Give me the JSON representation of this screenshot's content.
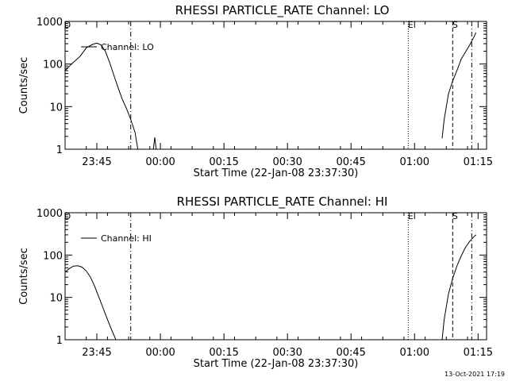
{
  "chart_data": [
    {
      "type": "line",
      "title": "RHESSI PARTICLE_RATE Channel: LO",
      "xlabel": "Start Time (22-Jan-08 23:37:30)",
      "ylabel": "Counts/sec",
      "y_scale": "log",
      "ylim": [
        1,
        1000
      ],
      "xlim": [
        "23:37:30",
        "01:17:00"
      ],
      "grid": false,
      "legend": {
        "placement": "top-left",
        "entries": [
          "Channel: LO"
        ]
      },
      "x_ticks": [
        "23:45",
        "00:00",
        "00:15",
        "00:30",
        "00:45",
        "01:00",
        "01:15"
      ],
      "y_ticks": [
        "1",
        "10",
        "100",
        "1000"
      ],
      "markers": [
        {
          "label": "D",
          "time": "23:37:30",
          "style": "solid"
        },
        {
          "label": "",
          "time": "23:53:00",
          "style": "dash-dot"
        },
        {
          "label": "E",
          "time": "00:58:30",
          "style": "dotted"
        },
        {
          "label": "S",
          "time": "01:09:00",
          "style": "dashed"
        },
        {
          "label": "",
          "time": "01:13:30",
          "style": "dash-dot"
        }
      ],
      "series": [
        {
          "name": "Channel: LO",
          "segments": [
            [
              [
                "23:37:30",
                70
              ],
              [
                "23:39:00",
                100
              ],
              [
                "23:41:00",
                150
              ],
              [
                "23:42:30",
                240
              ],
              [
                "23:44:00",
                290
              ],
              [
                "23:45:00",
                310
              ],
              [
                "23:46:00",
                280
              ],
              [
                "23:47:00",
                200
              ],
              [
                "23:48:00",
                110
              ],
              [
                "23:49:00",
                55
              ],
              [
                "23:50:00",
                28
              ],
              [
                "23:51:00",
                15
              ],
              [
                "23:52:00",
                9
              ],
              [
                "23:53:00",
                5
              ],
              [
                "23:54:00",
                2.5
              ],
              [
                "23:54:40",
                1
              ]
            ],
            [
              [
                "23:58:20",
                1
              ],
              [
                "23:58:40",
                1.9
              ],
              [
                "23:59:00",
                1
              ]
            ],
            [
              [
                "01:06:30",
                1.8
              ],
              [
                "01:07:00",
                5
              ],
              [
                "01:08:00",
                20
              ],
              [
                "01:09:00",
                40
              ],
              [
                "01:10:00",
                70
              ],
              [
                "01:11:00",
                130
              ],
              [
                "01:12:00",
                190
              ],
              [
                "01:13:00",
                280
              ],
              [
                "01:14:00",
                430
              ],
              [
                "01:14:30",
                550
              ]
            ]
          ]
        }
      ]
    },
    {
      "type": "line",
      "title": "RHESSI PARTICLE_RATE Channel: HI",
      "xlabel": "Start Time (22-Jan-08 23:37:30)",
      "ylabel": "Counts/sec",
      "y_scale": "log",
      "ylim": [
        1,
        1000
      ],
      "xlim": [
        "23:37:30",
        "01:17:00"
      ],
      "grid": false,
      "legend": {
        "placement": "top-left",
        "entries": [
          "Channel: HI"
        ]
      },
      "x_ticks": [
        "23:45",
        "00:00",
        "00:15",
        "00:30",
        "00:45",
        "01:00",
        "01:15"
      ],
      "y_ticks": [
        "1",
        "10",
        "100",
        "1000"
      ],
      "markers": [
        {
          "label": "D",
          "time": "23:37:30",
          "style": "solid"
        },
        {
          "label": "",
          "time": "23:53:00",
          "style": "dash-dot"
        },
        {
          "label": "E",
          "time": "00:58:30",
          "style": "dotted"
        },
        {
          "label": "S",
          "time": "01:09:00",
          "style": "dashed"
        },
        {
          "label": "",
          "time": "01:13:30",
          "style": "dash-dot"
        }
      ],
      "series": [
        {
          "name": "Channel: HI",
          "segments": [
            [
              [
                "23:37:30",
                40
              ],
              [
                "23:38:30",
                48
              ],
              [
                "23:39:30",
                55
              ],
              [
                "23:40:30",
                56
              ],
              [
                "23:41:30",
                52
              ],
              [
                "23:42:30",
                42
              ],
              [
                "23:43:30",
                30
              ],
              [
                "23:44:30",
                18
              ],
              [
                "23:45:30",
                10
              ],
              [
                "23:46:30",
                5.5
              ],
              [
                "23:47:30",
                3
              ],
              [
                "23:48:30",
                1.7
              ],
              [
                "23:49:30",
                1
              ]
            ],
            [
              [
                "01:06:30",
                1
              ],
              [
                "01:07:00",
                3
              ],
              [
                "01:08:00",
                12
              ],
              [
                "01:09:00",
                28
              ],
              [
                "01:10:00",
                55
              ],
              [
                "01:11:00",
                95
              ],
              [
                "01:12:00",
                150
              ],
              [
                "01:13:00",
                210
              ],
              [
                "01:14:00",
                270
              ],
              [
                "01:14:30",
                300
              ]
            ]
          ]
        }
      ]
    }
  ],
  "footer": {
    "timestamp": "13-Oct-2021 17:19"
  }
}
